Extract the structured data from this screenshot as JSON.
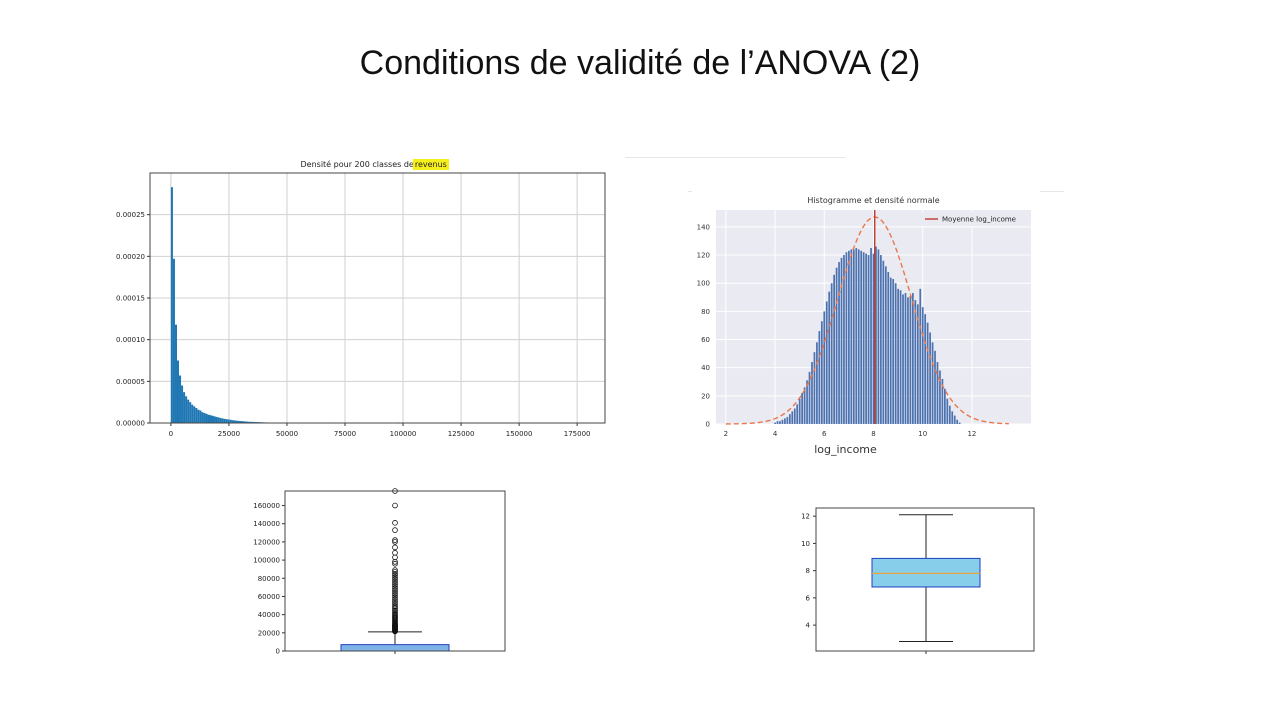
{
  "slide": {
    "title": "Conditions de validité de l’ANOVA (2)"
  },
  "colors": {
    "hist_bar": "#1f77b4",
    "seaborn_bg": "#eaeaf2",
    "hist2_bar": "#4c72b0",
    "normal_curve": "#e8784c",
    "mean_line": "#c0392b",
    "box_fill_1": "#7fb4e6",
    "box_fill_2": "#87ceeb",
    "box_edge_2": "#1f3fbf",
    "median_2": "#e8a33c"
  },
  "chart_data": [
    {
      "id": "hist_revenus",
      "type": "bar",
      "title": "Densité pour 200 classes de",
      "title_highlight": "revenus",
      "xlabel": "",
      "ylabel": "",
      "xlim": [
        -9000,
        187000
      ],
      "ylim": [
        0,
        0.0003
      ],
      "grid": true,
      "xticks": [
        0,
        25000,
        50000,
        75000,
        100000,
        125000,
        150000,
        175000
      ],
      "xtick_labels": [
        "0",
        "25000",
        "50000",
        "75000",
        "100000",
        "125000",
        "150000",
        "175000"
      ],
      "yticks": [
        0,
        5e-05,
        0.0001,
        0.00015,
        0.0002,
        0.00025
      ],
      "ytick_labels": [
        "0.00000",
        "0.00005",
        "0.00010",
        "0.00015",
        "0.00020",
        "0.00025"
      ],
      "bin_width": 875,
      "x": [
        0,
        875,
        1750,
        2625,
        3500,
        4375,
        5250,
        6125,
        7000,
        7875,
        8750,
        9625,
        10500,
        11375,
        12250,
        13125,
        14000,
        14875,
        15750,
        16625,
        17500,
        18375,
        19250,
        20125,
        21000,
        21875,
        22750,
        23625,
        24500,
        25375,
        26250,
        27125,
        28000,
        28875,
        29750,
        30625,
        31500,
        32375,
        33250,
        34125,
        35000,
        35875,
        36750,
        37625,
        38500,
        39375,
        40250,
        41125,
        42000,
        42875,
        43750,
        44625,
        45500,
        46375,
        47250,
        48125,
        49000,
        52500,
        56000,
        59500,
        63000,
        70000,
        80500,
        98000
      ],
      "values": [
        0.000283,
        0.000197,
        0.000118,
        7.5e-05,
        5.7e-05,
        4.5e-05,
        3.7e-05,
        3.2e-05,
        2.8e-05,
        2.5e-05,
        2.2e-05,
        2e-05,
        1.8e-05,
        1.6e-05,
        1.5e-05,
        1.3e-05,
        1.2e-05,
        1.1e-05,
        1e-05,
        9.4e-06,
        8.7e-06,
        8e-06,
        7.3e-06,
        6.7e-06,
        6e-06,
        5.5e-06,
        5e-06,
        4.6e-06,
        4.2e-06,
        3.8e-06,
        3.4e-06,
        3.1e-06,
        2.8e-06,
        2.5e-06,
        2.3e-06,
        2.1e-06,
        1.9e-06,
        1.7e-06,
        1.5e-06,
        1.4e-06,
        1.3e-06,
        1.2e-06,
        1.1e-06,
        1e-06,
        9e-07,
        8e-07,
        7e-07,
        6.5e-07,
        6e-07,
        5.5e-07,
        5e-07,
        4.5e-07,
        4e-07,
        3.5e-07,
        3e-07,
        3e-07,
        2.5e-07,
        2e-07,
        2e-07,
        1.5e-07,
        1.5e-07,
        1e-07,
        1e-07,
        5e-08
      ]
    },
    {
      "id": "hist_log_income",
      "type": "bar",
      "title": "Histogramme et densité normale",
      "xlabel": "log_income",
      "ylabel": "",
      "xlim": [
        1.6,
        14.4
      ],
      "ylim": [
        0,
        152
      ],
      "grid": true,
      "xticks": [
        2,
        4,
        6,
        8,
        10,
        12
      ],
      "xtick_labels": [
        "2",
        "4",
        "6",
        "8",
        "10",
        "12"
      ],
      "yticks": [
        0,
        20,
        40,
        60,
        80,
        100,
        120,
        140
      ],
      "ytick_labels": [
        "0",
        "20",
        "40",
        "60",
        "80",
        "100",
        "120",
        "140"
      ],
      "legend": {
        "label": "Moyenne log_income",
        "position": "top-right"
      },
      "mean": 8.05,
      "normal_curve": {
        "mean": 8.05,
        "sd": 1.5,
        "peak": 147,
        "range": [
          2.0,
          13.5
        ]
      },
      "x": [
        4.0,
        4.1,
        4.2,
        4.3,
        4.4,
        4.5,
        4.6,
        4.7,
        4.8,
        4.9,
        5.0,
        5.1,
        5.2,
        5.3,
        5.4,
        5.5,
        5.6,
        5.7,
        5.8,
        5.9,
        6.0,
        6.1,
        6.2,
        6.3,
        6.4,
        6.5,
        6.6,
        6.7,
        6.8,
        6.9,
        7.0,
        7.1,
        7.2,
        7.3,
        7.4,
        7.5,
        7.6,
        7.7,
        7.8,
        7.9,
        8.0,
        8.1,
        8.2,
        8.3,
        8.4,
        8.5,
        8.6,
        8.7,
        8.8,
        8.9,
        9.0,
        9.1,
        9.2,
        9.3,
        9.4,
        9.5,
        9.6,
        9.7,
        9.8,
        9.9,
        10.0,
        10.1,
        10.2,
        10.3,
        10.4,
        10.5,
        10.6,
        10.7,
        10.8,
        10.9,
        11.0,
        11.1,
        11.2,
        11.3,
        11.4,
        11.5
      ],
      "values": [
        1,
        2,
        2,
        3,
        4,
        5,
        7,
        9,
        11,
        14,
        18,
        22,
        26,
        31,
        37,
        44,
        51,
        58,
        66,
        73,
        80,
        87,
        94,
        100,
        106,
        111,
        115,
        118,
        120,
        122,
        123,
        124,
        124,
        125,
        124,
        123,
        122,
        121,
        120,
        125,
        121,
        126,
        124,
        120,
        116,
        112,
        108,
        104,
        103,
        100,
        96,
        95,
        92,
        93,
        90,
        91,
        93,
        88,
        85,
        96,
        83,
        78,
        72,
        65,
        58,
        52,
        44,
        38,
        32,
        25,
        18,
        13,
        9,
        6,
        3,
        1
      ]
    },
    {
      "id": "box_revenus",
      "type": "box",
      "yticks": [
        0,
        20000,
        40000,
        60000,
        80000,
        100000,
        120000,
        140000,
        160000
      ],
      "ytick_labels": [
        "0",
        "20000",
        "40000",
        "60000",
        "80000",
        "100000",
        "120000",
        "140000",
        "160000"
      ],
      "ylim": [
        0,
        176000
      ],
      "min": 0,
      "q1": 0,
      "median": 2000,
      "q3": 7000,
      "whisker_high": 21000,
      "outliers": [
        21500,
        22000,
        22500,
        23000,
        23500,
        24000,
        24500,
        25000,
        25500,
        26000,
        26500,
        27000,
        27500,
        28000,
        28500,
        29000,
        29500,
        30000,
        31000,
        32000,
        33000,
        34000,
        35000,
        36000,
        37000,
        38000,
        39000,
        40000,
        41500,
        43000,
        44500,
        46000,
        47500,
        49000,
        51000,
        53000,
        55000,
        57000,
        59000,
        61000,
        63000,
        65000,
        67000,
        69000,
        71000,
        73000,
        75000,
        77000,
        79000,
        81000,
        83000,
        85000,
        87000,
        89000,
        96000,
        98000,
        103000,
        108000,
        114000,
        120000,
        122000,
        133000,
        141000,
        160000,
        176000
      ]
    },
    {
      "id": "box_log_income",
      "type": "box",
      "yticks": [
        4,
        6,
        8,
        10,
        12
      ],
      "ytick_labels": [
        "4",
        "6",
        "8",
        "10",
        "12"
      ],
      "ylim": [
        2.1,
        12.6
      ],
      "min": 2.8,
      "q1": 6.8,
      "median": 7.8,
      "q3": 8.9,
      "max": 12.1
    }
  ]
}
